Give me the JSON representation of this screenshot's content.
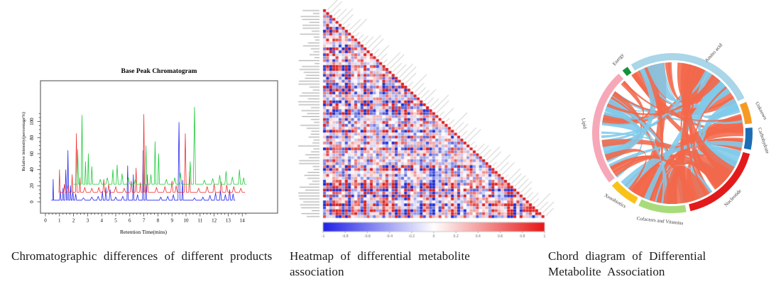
{
  "captions": [
    "Chromatographic differences of different products",
    "Heatmap of differential metabolite association",
    "Chord diagram of Differential Metabolite Association"
  ],
  "chart_data": [
    {
      "type": "line",
      "title": "Base Peak Chromatogram",
      "xlabel": "Retention Time(mins)",
      "ylabel": "Relative intensity(percentage%)",
      "xlim": [
        0,
        14.4
      ],
      "ylim": [
        0,
        150
      ],
      "xticks": [
        0,
        1,
        2,
        3,
        4,
        5,
        6,
        7,
        8,
        9,
        10,
        11,
        12,
        13,
        14
      ],
      "yticks": [
        0,
        20,
        40,
        60,
        80,
        100
      ],
      "grid": false,
      "legend": "none",
      "series": [
        {
          "name": "product-blue",
          "color": "#2a2af0",
          "baseline": 2,
          "x_start": 0.42,
          "x_end": 13.5,
          "peaks": [
            [
              0.55,
              26,
              0.03
            ],
            [
              1.05,
              12,
              0.05
            ],
            [
              1.25,
              15,
              0.05
            ],
            [
              1.45,
              38,
              0.06
            ],
            [
              1.6,
              62,
              0.05
            ],
            [
              1.78,
              18,
              0.05
            ],
            [
              1.95,
              12,
              0.05
            ],
            [
              2.15,
              8,
              0.06
            ],
            [
              2.7,
              3,
              0.12
            ],
            [
              3.3,
              4,
              0.12
            ],
            [
              3.75,
              5,
              0.1
            ],
            [
              4.05,
              11,
              0.06
            ],
            [
              4.3,
              16,
              0.06
            ],
            [
              4.6,
              13,
              0.07
            ],
            [
              5.0,
              4,
              0.1
            ],
            [
              5.5,
              5,
              0.1
            ],
            [
              5.85,
              43,
              0.05
            ],
            [
              6.25,
              32,
              0.05
            ],
            [
              6.55,
              7,
              0.08
            ],
            [
              6.95,
              62,
              0.05
            ],
            [
              7.15,
              20,
              0.05
            ],
            [
              8.2,
              4,
              0.1
            ],
            [
              8.7,
              5,
              0.1
            ],
            [
              9.1,
              7,
              0.08
            ],
            [
              9.5,
              97,
              0.07
            ],
            [
              9.75,
              25,
              0.05
            ],
            [
              10.6,
              3,
              0.1
            ],
            [
              11.2,
              4,
              0.1
            ],
            [
              11.7,
              6,
              0.1
            ],
            [
              12.1,
              9,
              0.08
            ],
            [
              12.45,
              12,
              0.07
            ],
            [
              12.8,
              7,
              0.08
            ],
            [
              13.1,
              13,
              0.07
            ],
            [
              13.35,
              8,
              0.07
            ]
          ]
        },
        {
          "name": "product-red",
          "color": "#f03232",
          "baseline": 12,
          "x_start": 0.92,
          "x_end": 14.2,
          "peaks": [
            [
              1.0,
              28,
              0.04
            ],
            [
              1.35,
              10,
              0.06
            ],
            [
              1.6,
              8,
              0.06
            ],
            [
              1.9,
              22,
              0.05
            ],
            [
              2.2,
              73,
              0.06
            ],
            [
              2.45,
              18,
              0.05
            ],
            [
              2.8,
              6,
              0.1
            ],
            [
              3.3,
              5,
              0.1
            ],
            [
              3.8,
              6,
              0.1
            ],
            [
              4.15,
              16,
              0.07
            ],
            [
              4.5,
              10,
              0.07
            ],
            [
              5.0,
              7,
              0.1
            ],
            [
              5.6,
              5,
              0.1
            ],
            [
              6.1,
              14,
              0.07
            ],
            [
              6.45,
              30,
              0.06
            ],
            [
              6.75,
              12,
              0.06
            ],
            [
              7.0,
              97,
              0.06
            ],
            [
              7.25,
              22,
              0.05
            ],
            [
              7.9,
              6,
              0.1
            ],
            [
              8.5,
              7,
              0.1
            ],
            [
              9.0,
              14,
              0.08
            ],
            [
              9.3,
              8,
              0.08
            ],
            [
              9.95,
              73,
              0.07
            ],
            [
              10.25,
              26,
              0.06
            ],
            [
              10.9,
              5,
              0.1
            ],
            [
              11.5,
              7,
              0.1
            ],
            [
              12.0,
              10,
              0.08
            ],
            [
              12.5,
              13,
              0.08
            ],
            [
              12.9,
              9,
              0.08
            ],
            [
              13.4,
              7,
              0.1
            ],
            [
              13.9,
              5,
              0.1
            ]
          ]
        },
        {
          "name": "product-green",
          "color": "#1ecb3a",
          "baseline": 22,
          "x_start": 2.0,
          "x_end": 14.3,
          "peaks": [
            [
              2.3,
              43,
              0.06
            ],
            [
              2.6,
              86,
              0.06
            ],
            [
              2.85,
              28,
              0.05
            ],
            [
              3.05,
              38,
              0.05
            ],
            [
              3.3,
              22,
              0.06
            ],
            [
              3.9,
              6,
              0.1
            ],
            [
              4.4,
              8,
              0.1
            ],
            [
              4.8,
              18,
              0.07
            ],
            [
              5.1,
              24,
              0.07
            ],
            [
              5.45,
              13,
              0.08
            ],
            [
              5.9,
              8,
              0.1
            ],
            [
              6.4,
              6,
              0.1
            ],
            [
              7.15,
              48,
              0.06
            ],
            [
              7.5,
              12,
              0.07
            ],
            [
              7.8,
              53,
              0.06
            ],
            [
              8.05,
              38,
              0.06
            ],
            [
              8.6,
              6,
              0.1
            ],
            [
              9.2,
              8,
              0.1
            ],
            [
              9.6,
              14,
              0.08
            ],
            [
              10.3,
              28,
              0.07
            ],
            [
              10.6,
              96,
              0.08
            ],
            [
              11.3,
              5,
              0.1
            ],
            [
              11.9,
              7,
              0.1
            ],
            [
              12.4,
              11,
              0.08
            ],
            [
              12.85,
              16,
              0.08
            ],
            [
              13.3,
              9,
              0.1
            ],
            [
              13.8,
              18,
              0.08
            ],
            [
              14.1,
              8,
              0.08
            ]
          ]
        }
      ]
    },
    {
      "type": "heatmap",
      "title": "",
      "shape": "lower-triangular-correlation-matrix",
      "n_rows": 71,
      "value_range": [
        -1,
        1
      ],
      "diagonal_value": 1,
      "row_labels_legible": false,
      "diagonal_labels_legible": false,
      "colors": {
        "negative": "#1b2bd0",
        "zero": "#ffffff",
        "positive": "#dd1c1c"
      },
      "colorbar_ticks": [
        "-1",
        "-0.8",
        "-0.6",
        "-0.4",
        "-0.2",
        "0",
        "0.2",
        "0.4",
        "0.6",
        "0.8",
        "1"
      ],
      "seed": 9
    },
    {
      "type": "chord",
      "title": "",
      "ribbon_colors": {
        "positive": "#f2684a",
        "negative": "#7fc9ea"
      },
      "positive_fraction": 0.64,
      "n_ribbons": 74,
      "seed": 23,
      "segments": [
        {
          "label": "Amino acid",
          "color": "#a9d6e8",
          "start": -31,
          "end": 64,
          "label_angle": 28,
          "label_rotation": -48
        },
        {
          "label": "Unknown",
          "color": "#f59b24",
          "start": 67,
          "end": 83,
          "label_angle": 76,
          "label_rotation": 62
        },
        {
          "label": "Carbohydrate",
          "color": "#1b6db5",
          "start": 86,
          "end": 102,
          "label_angle": 95,
          "label_rotation": 72
        },
        {
          "label": "Nucleotide",
          "color": "#e31a1c",
          "start": 105,
          "end": 167,
          "label_angle": 137,
          "label_rotation": -46
        },
        {
          "label": "Cofactors and Vitamins",
          "color": "#a8dc7a",
          "start": 170,
          "end": 205,
          "label_angle": 188,
          "label_rotation": 6
        },
        {
          "label": "Xenobiotics",
          "color": "#f8c21b",
          "start": 208,
          "end": 229,
          "label_angle": 220,
          "label_rotation": 30
        },
        {
          "label": "Lipid",
          "color": "#f7a8b8",
          "start": 232,
          "end": 318,
          "label_angle": 276,
          "label_rotation": 80
        },
        {
          "label": "Energy",
          "color": "#17913c",
          "start": 321.5,
          "end": 326,
          "label_angle": 324,
          "label_rotation": -50
        }
      ]
    }
  ]
}
